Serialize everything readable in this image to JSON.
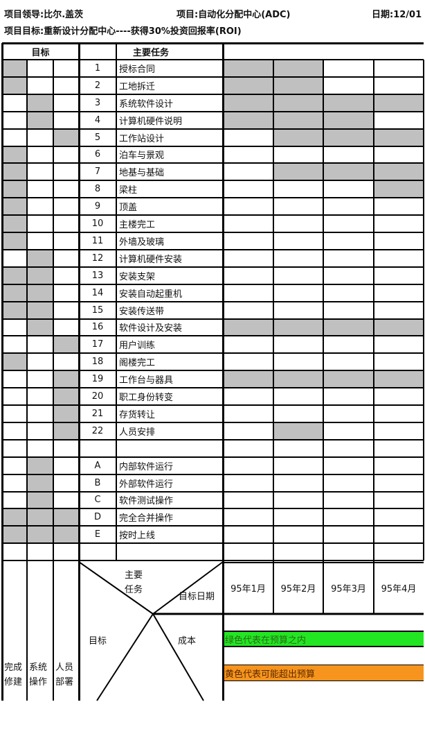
{
  "header": {
    "leader": "项目领导:比尔.盖茨",
    "project": "项目:自动化分配中心(ADC)",
    "date": "日期:12/01",
    "objective": "项目目标:重新设计分配中心----获得30%投资回报率(ROI)"
  },
  "columns": {
    "goals": "目标",
    "tasks": "主要任务"
  },
  "colors": {
    "shade": "#c0c0c0",
    "green": "#22e622",
    "orange": "#f7941d"
  },
  "tasks": [
    {
      "no": "1",
      "name": "授标合同",
      "goals": "100",
      "months": "1100"
    },
    {
      "no": "2",
      "name": "工地拆迁",
      "goals": "100",
      "months": "1100"
    },
    {
      "no": "3",
      "name": "系统软件设计",
      "goals": "010",
      "months": "1111"
    },
    {
      "no": "4",
      "name": "计算机硬件说明",
      "goals": "010",
      "months": "1110"
    },
    {
      "no": "5",
      "name": "工作站设计",
      "goals": "001",
      "months": "0111"
    },
    {
      "no": "6",
      "name": "泊车与景观",
      "goals": "100",
      "months": "0000"
    },
    {
      "no": "7",
      "name": "地基与基础",
      "goals": "100",
      "months": "0111"
    },
    {
      "no": "8",
      "name": "梁柱",
      "goals": "100",
      "months": "0001"
    },
    {
      "no": "9",
      "name": "顶盖",
      "goals": "100",
      "months": "0000"
    },
    {
      "no": "10",
      "name": "主楼完工",
      "goals": "100",
      "months": "0000"
    },
    {
      "no": "11",
      "name": "外墙及玻璃",
      "goals": "100",
      "months": "0000"
    },
    {
      "no": "12",
      "name": "计算机硬件安装",
      "goals": "010",
      "months": "0000"
    },
    {
      "no": "13",
      "name": "安装支架",
      "goals": "110",
      "months": "0000"
    },
    {
      "no": "14",
      "name": "安装自动起重机",
      "goals": "110",
      "months": "0000"
    },
    {
      "no": "15",
      "name": "安装传送带",
      "goals": "110",
      "months": "0000"
    },
    {
      "no": "16",
      "name": "软件设计及安装",
      "goals": "010",
      "months": "1111"
    },
    {
      "no": "17",
      "name": "用户训练",
      "goals": "001",
      "months": "0000"
    },
    {
      "no": "18",
      "name": "阁楼完工",
      "goals": "100",
      "months": "0000"
    },
    {
      "no": "19",
      "name": "工作台与器具",
      "goals": "001",
      "months": "1111"
    },
    {
      "no": "20",
      "name": "职工身份转变",
      "goals": "001",
      "months": "0000"
    },
    {
      "no": "21",
      "name": "存货转让",
      "goals": "001",
      "months": "0000"
    },
    {
      "no": "22",
      "name": "人员安排",
      "goals": "001",
      "months": "0100"
    },
    {
      "no": "",
      "name": "",
      "goals": "000",
      "months": "0000"
    },
    {
      "no": "A",
      "name": "内部软件运行",
      "goals": "010",
      "months": "0000"
    },
    {
      "no": "B",
      "name": "外部软件运行",
      "goals": "010",
      "months": "0000"
    },
    {
      "no": "C",
      "name": "软件测试操作",
      "goals": "010",
      "months": "0000"
    },
    {
      "no": "D",
      "name": "完全合并操作",
      "goals": "111",
      "months": "0000"
    },
    {
      "no": "E",
      "name": "按时上线",
      "goals": "111",
      "months": "0000"
    },
    {
      "no": "",
      "name": "",
      "goals": "000",
      "months": "0000"
    }
  ],
  "bottom": {
    "main_task": [
      "主要",
      "任务"
    ],
    "target_date": "目标日期",
    "goal": "目标",
    "cost": "成本",
    "months": [
      "95年1月",
      "95年2月",
      "95年3月",
      "95年4月"
    ],
    "goal_cols": [
      [
        "完成",
        "修建"
      ],
      [
        "系统",
        "操作"
      ],
      [
        "人员",
        "部署"
      ]
    ],
    "legend_green": "绿色代表在预算之内",
    "legend_orange": "黄色代表可能超出预算"
  }
}
